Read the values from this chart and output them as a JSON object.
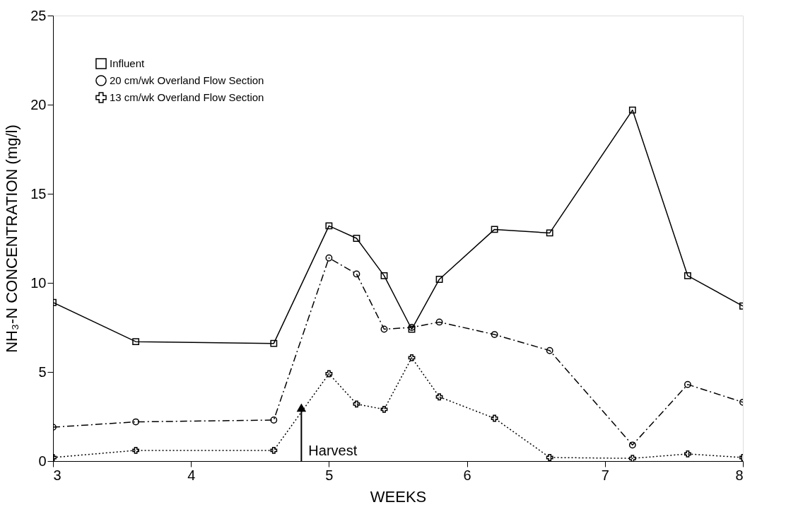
{
  "chart_data": {
    "type": "line",
    "xlabel": "WEEKS",
    "ylabel": "NH₃-N CONCENTRATION (mg/l)",
    "x": [
      3,
      3.6,
      4.6,
      5.0,
      5.2,
      5.4,
      5.6,
      5.8,
      6.2,
      6.6,
      7.2,
      7.6,
      8
    ],
    "series": [
      {
        "name": "Influent",
        "color": "#000000",
        "marker": "square",
        "line_style": "solid",
        "values": [
          8.9,
          6.7,
          6.6,
          13.2,
          12.5,
          10.4,
          7.4,
          10.2,
          13.0,
          12.8,
          19.7,
          10.4,
          8.7
        ]
      },
      {
        "name": "20 cm/wk Overland Flow Section",
        "color": "#000000",
        "marker": "circle",
        "line_style": "dashed",
        "values": [
          1.9,
          2.2,
          2.3,
          11.4,
          10.5,
          7.4,
          7.5,
          7.8,
          7.1,
          6.2,
          0.9,
          4.3,
          3.3
        ]
      },
      {
        "name": "13 cm/wk Overland Flow Section",
        "color": "#000000",
        "marker": "cross",
        "line_style": "dotted",
        "values": [
          0.2,
          0.6,
          0.6,
          4.9,
          3.2,
          2.9,
          5.8,
          3.6,
          2.4,
          0.2,
          0.15,
          0.4,
          0.2
        ]
      }
    ],
    "annotations": [
      {
        "text": "Harvest",
        "x": 4.8,
        "y": 3
      }
    ],
    "xlim": [
      3,
      8
    ],
    "xticks": [
      3,
      4,
      5,
      6,
      7,
      8
    ],
    "ylim": [
      0,
      25
    ],
    "yticks": [
      0,
      5,
      10,
      15,
      20,
      25
    ],
    "grid": false,
    "legend": "top left"
  }
}
